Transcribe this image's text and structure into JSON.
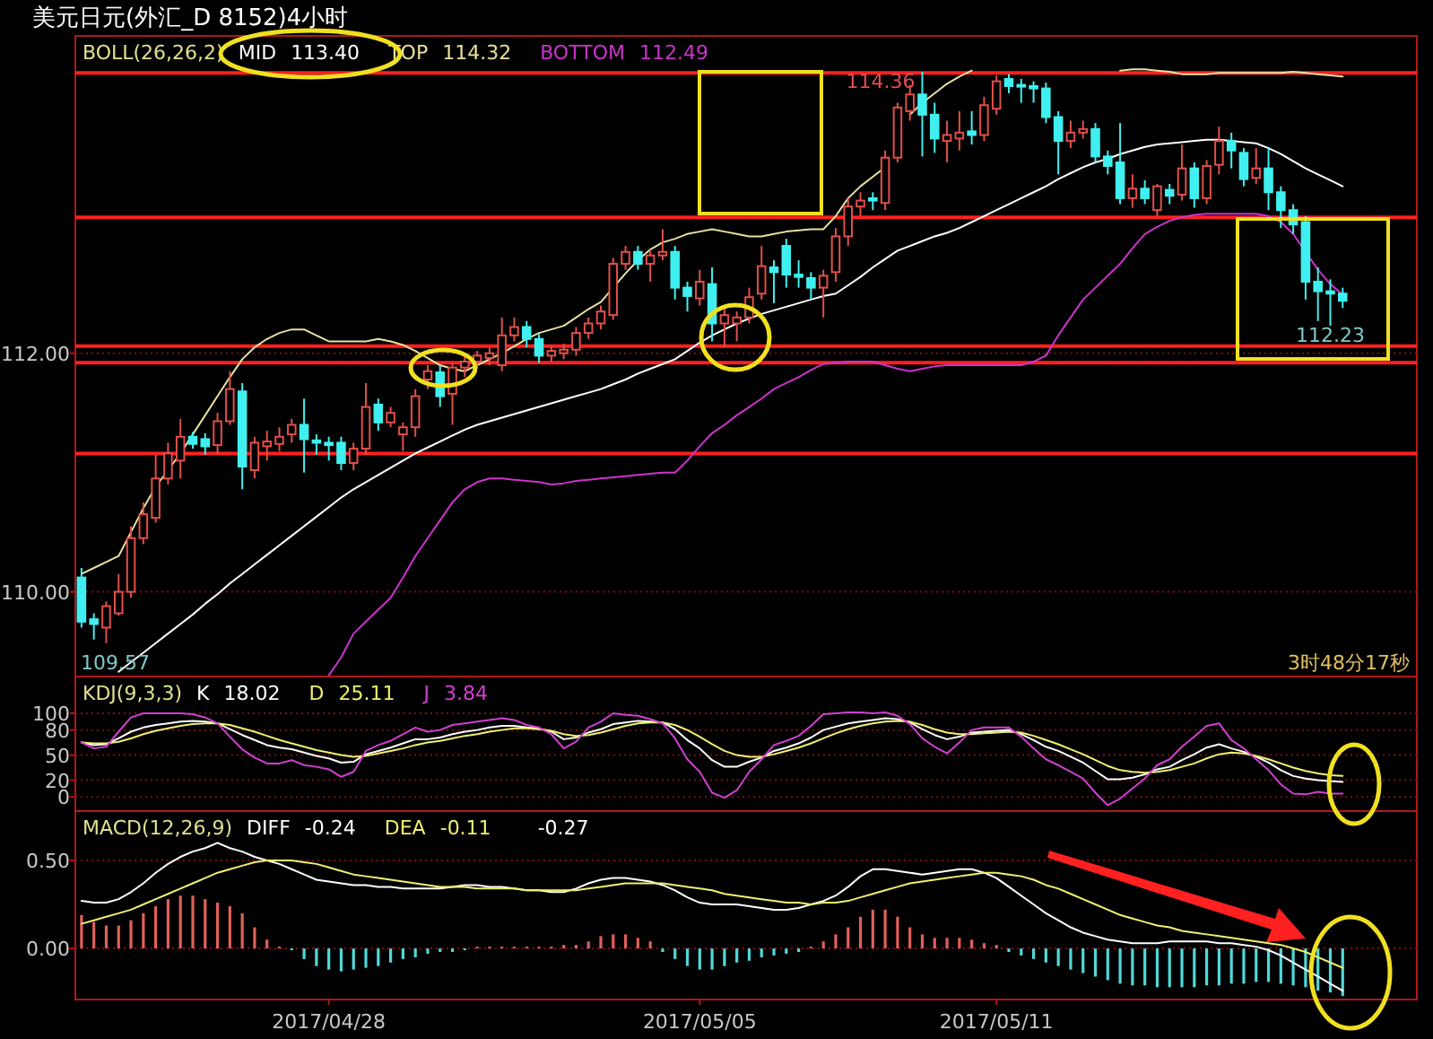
{
  "chart_data": [
    {
      "type": "candlestick",
      "title": "美元日元(外汇_D 8152)4小时",
      "legend_title": "BOLL(26,26,2)",
      "grid": "y",
      "tick_labels": "y",
      "ylim": [
        109.29,
        114.39
      ],
      "yticks": [
        {
          "value": 110,
          "label": "110.00"
        },
        {
          "value": 112,
          "label": "112.00"
        }
      ],
      "categories": [
        null,
        null,
        null,
        null,
        null,
        null,
        null,
        null,
        null,
        null,
        null,
        null,
        null,
        null,
        null,
        null,
        null,
        null,
        null,
        null,
        null,
        null,
        null,
        null,
        null,
        null,
        null,
        null,
        null,
        null,
        null,
        null,
        null,
        null,
        null,
        null,
        null,
        null,
        null,
        null,
        null,
        null,
        null,
        null,
        null,
        null,
        null,
        null,
        null,
        null,
        null,
        null,
        null,
        null,
        null,
        null,
        null,
        null,
        null,
        null,
        null,
        null,
        null,
        null,
        null,
        null,
        null,
        null,
        null,
        null,
        null,
        null,
        null,
        null,
        null,
        null,
        null,
        null,
        null,
        null,
        null,
        null,
        null,
        null,
        null,
        null,
        null,
        null,
        null,
        null,
        null,
        null,
        null,
        null,
        null,
        null,
        null,
        null,
        null,
        null,
        null,
        null,
        null
      ],
      "ohlc": [
        [
          110.12,
          110.2,
          109.7,
          109.75
        ],
        [
          109.77,
          109.82,
          109.6,
          109.73
        ],
        [
          109.7,
          109.92,
          109.57,
          109.88
        ],
        [
          109.82,
          110.15,
          109.8,
          110.0
        ],
        [
          110.0,
          110.55,
          109.95,
          110.45
        ],
        [
          110.45,
          110.75,
          110.4,
          110.65
        ],
        [
          110.62,
          111.15,
          110.58,
          110.95
        ],
        [
          110.95,
          111.25,
          110.9,
          111.16
        ],
        [
          111.1,
          111.45,
          110.95,
          111.3
        ],
        [
          111.3,
          111.34,
          111.2,
          111.24
        ],
        [
          111.28,
          111.33,
          111.15,
          111.22
        ],
        [
          111.23,
          111.5,
          111.15,
          111.43
        ],
        [
          111.43,
          111.85,
          111.4,
          111.7
        ],
        [
          111.68,
          111.75,
          110.86,
          111.05
        ],
        [
          111.02,
          111.3,
          110.95,
          111.25
        ],
        [
          111.22,
          111.35,
          111.1,
          111.26
        ],
        [
          111.24,
          111.38,
          111.18,
          111.3
        ],
        [
          111.32,
          111.45,
          111.25,
          111.4
        ],
        [
          111.4,
          111.62,
          111.0,
          111.28
        ],
        [
          111.27,
          111.32,
          111.15,
          111.25
        ],
        [
          111.25,
          111.3,
          111.1,
          111.23
        ],
        [
          111.25,
          111.3,
          111.02,
          111.08
        ],
        [
          111.08,
          111.25,
          111.02,
          111.2
        ],
        [
          111.2,
          111.75,
          111.15,
          111.55
        ],
        [
          111.57,
          111.62,
          111.35,
          111.42
        ],
        [
          111.42,
          111.55,
          111.38,
          111.5
        ],
        [
          111.32,
          111.42,
          111.18,
          111.38
        ],
        [
          111.38,
          111.7,
          111.3,
          111.64
        ],
        [
          111.78,
          111.9,
          111.7,
          111.85
        ],
        [
          111.84,
          111.9,
          111.55,
          111.64
        ],
        [
          111.66,
          111.92,
          111.4,
          111.88
        ],
        [
          111.88,
          111.98,
          111.8,
          111.93
        ],
        [
          111.93,
          112.02,
          111.88,
          111.98
        ],
        [
          111.96,
          112.05,
          111.9,
          112.0
        ],
        [
          111.9,
          112.3,
          111.85,
          112.15
        ],
        [
          112.15,
          112.3,
          112.1,
          112.22
        ],
        [
          112.22,
          112.27,
          112.05,
          112.12
        ],
        [
          112.12,
          112.16,
          111.92,
          111.98
        ],
        [
          111.98,
          112.06,
          111.93,
          112.02
        ],
        [
          112.0,
          112.08,
          111.95,
          112.03
        ],
        [
          112.03,
          112.22,
          111.98,
          112.17
        ],
        [
          112.17,
          112.3,
          112.12,
          112.25
        ],
        [
          112.25,
          112.4,
          112.2,
          112.35
        ],
        [
          112.32,
          112.8,
          112.28,
          112.75
        ],
        [
          112.75,
          112.9,
          112.7,
          112.85
        ],
        [
          112.85,
          112.9,
          112.7,
          112.75
        ],
        [
          112.75,
          112.87,
          112.6,
          112.82
        ],
        [
          112.82,
          113.04,
          112.78,
          112.85
        ],
        [
          112.85,
          112.9,
          112.45,
          112.55
        ],
        [
          112.55,
          112.6,
          112.35,
          112.48
        ],
        [
          112.46,
          112.7,
          112.4,
          112.6
        ],
        [
          112.58,
          112.72,
          112.1,
          112.25
        ],
        [
          112.25,
          112.4,
          112.05,
          112.32
        ],
        [
          112.25,
          112.35,
          112.1,
          112.3
        ],
        [
          112.3,
          112.55,
          112.25,
          112.47
        ],
        [
          112.5,
          112.9,
          112.45,
          112.73
        ],
        [
          112.72,
          112.78,
          112.42,
          112.68
        ],
        [
          112.9,
          112.96,
          112.55,
          112.66
        ],
        [
          112.66,
          112.78,
          112.55,
          112.64
        ],
        [
          112.63,
          112.68,
          112.45,
          112.55
        ],
        [
          112.55,
          112.7,
          112.3,
          112.65
        ],
        [
          112.68,
          113.05,
          112.6,
          112.98
        ],
        [
          112.98,
          113.3,
          112.9,
          113.23
        ],
        [
          113.23,
          113.35,
          113.15,
          113.28
        ],
        [
          113.3,
          113.35,
          113.2,
          113.28
        ],
        [
          113.26,
          113.7,
          113.2,
          113.64
        ],
        [
          113.64,
          114.1,
          113.6,
          114.06
        ],
        [
          114.03,
          114.25,
          113.95,
          114.17
        ],
        [
          114.17,
          114.36,
          113.65,
          114.0
        ],
        [
          114.0,
          114.1,
          113.68,
          113.8
        ],
        [
          113.78,
          113.95,
          113.6,
          113.83
        ],
        [
          113.8,
          114.03,
          113.7,
          113.85
        ],
        [
          113.86,
          114.03,
          113.75,
          113.83
        ],
        [
          113.83,
          114.15,
          113.78,
          114.08
        ],
        [
          114.05,
          114.33,
          114.0,
          114.28
        ],
        [
          114.3,
          114.34,
          114.18,
          114.24
        ],
        [
          114.25,
          114.3,
          114.1,
          114.24
        ],
        [
          114.24,
          114.28,
          114.1,
          114.22
        ],
        [
          114.22,
          114.27,
          113.93,
          113.98
        ],
        [
          113.98,
          114.03,
          113.5,
          113.78
        ],
        [
          113.78,
          113.95,
          113.72,
          113.85
        ],
        [
          113.85,
          113.95,
          113.8,
          113.88
        ],
        [
          113.88,
          113.93,
          113.6,
          113.65
        ],
        [
          113.65,
          113.7,
          113.5,
          113.57
        ],
        [
          113.6,
          113.93,
          113.25,
          113.3
        ],
        [
          113.3,
          113.5,
          113.22,
          113.38
        ],
        [
          113.38,
          113.45,
          113.25,
          113.3
        ],
        [
          113.2,
          113.42,
          113.15,
          113.4
        ],
        [
          113.37,
          113.42,
          113.25,
          113.32
        ],
        [
          113.33,
          113.75,
          113.28,
          113.55
        ],
        [
          113.55,
          113.6,
          113.22,
          113.3
        ],
        [
          113.3,
          113.62,
          113.25,
          113.57
        ],
        [
          113.58,
          113.9,
          113.5,
          113.78
        ],
        [
          113.78,
          113.85,
          113.55,
          113.7
        ],
        [
          113.68,
          113.72,
          113.4,
          113.46
        ],
        [
          113.47,
          113.72,
          113.42,
          113.55
        ],
        [
          113.55,
          113.72,
          113.2,
          113.35
        ],
        [
          113.35,
          113.4,
          113.05,
          113.2
        ],
        [
          113.2,
          113.25,
          113.0,
          113.08
        ],
        [
          113.1,
          113.15,
          112.45,
          112.6
        ],
        [
          112.6,
          112.72,
          112.27,
          112.52
        ],
        [
          112.52,
          112.62,
          112.23,
          112.5
        ],
        [
          112.5,
          112.55,
          112.38,
          112.44
        ]
      ],
      "series": [
        {
          "name": "MID",
          "type": "line",
          "color": "#ffffff",
          "values": [
            null,
            null,
            null,
            109.33,
            109.41,
            109.49,
            109.57,
            109.65,
            109.73,
            109.81,
            109.9,
            109.98,
            110.07,
            110.15,
            110.23,
            110.31,
            110.39,
            110.47,
            110.55,
            110.63,
            110.71,
            110.79,
            110.86,
            110.92,
            110.98,
            111.04,
            111.1,
            111.16,
            111.21,
            111.26,
            111.31,
            111.36,
            111.4,
            111.43,
            111.46,
            111.49,
            111.52,
            111.55,
            111.58,
            111.61,
            111.64,
            111.67,
            111.7,
            111.74,
            111.78,
            111.83,
            111.87,
            111.91,
            111.95,
            112.02,
            112.09,
            112.15,
            112.2,
            112.25,
            112.29,
            112.33,
            112.36,
            112.39,
            112.42,
            112.45,
            112.48,
            112.5,
            112.57,
            112.64,
            112.72,
            112.79,
            112.86,
            112.9,
            112.94,
            112.98,
            113.01,
            113.05,
            113.1,
            113.15,
            113.2,
            113.25,
            113.3,
            113.35,
            113.4,
            113.46,
            113.51,
            113.56,
            113.6,
            113.63,
            113.67,
            113.7,
            113.73,
            113.75,
            113.76,
            113.77,
            113.78,
            113.79,
            113.79,
            113.78,
            113.77,
            113.76,
            113.72,
            113.67,
            113.61,
            113.55,
            113.5,
            113.45,
            113.4
          ]
        },
        {
          "name": "TOP",
          "type": "line",
          "color": "#e8e0a0",
          "values": [
            110.15,
            110.2,
            110.25,
            110.3,
            110.5,
            110.7,
            110.88,
            111.02,
            111.16,
            111.32,
            111.48,
            111.64,
            111.8,
            111.95,
            112.05,
            112.12,
            112.17,
            112.2,
            112.2,
            112.15,
            112.1,
            112.1,
            112.1,
            112.1,
            112.12,
            112.1,
            112.07,
            112.02,
            111.96,
            111.9,
            111.87,
            111.85,
            111.9,
            111.95,
            112.0,
            112.06,
            112.12,
            112.17,
            112.2,
            112.23,
            112.3,
            112.37,
            112.43,
            112.55,
            112.67,
            112.78,
            112.87,
            112.93,
            112.96,
            113.0,
            113.02,
            113.04,
            113.02,
            113.0,
            112.98,
            112.98,
            113.0,
            113.02,
            113.03,
            113.04,
            113.04,
            113.15,
            113.3,
            113.4,
            113.48,
            113.56,
            null,
            114.0,
            114.1,
            114.18,
            114.26,
            114.32,
            114.37,
            null,
            null,
            null,
            null,
            null,
            null,
            null,
            null,
            null,
            null,
            null,
            114.37,
            114.38,
            114.38,
            114.37,
            114.36,
            114.34,
            114.34,
            114.34,
            114.35,
            114.35,
            114.35,
            114.35,
            114.35,
            114.35,
            114.36,
            114.35,
            114.34,
            114.33,
            114.32
          ]
        },
        {
          "name": "BOTTOM",
          "type": "line",
          "color": "#cc33cc",
          "values": [
            null,
            null,
            null,
            null,
            null,
            null,
            null,
            null,
            null,
            null,
            null,
            null,
            null,
            null,
            null,
            null,
            null,
            null,
            null,
            null,
            109.3,
            109.45,
            109.65,
            109.75,
            109.85,
            109.95,
            110.12,
            110.3,
            110.45,
            110.6,
            110.75,
            110.86,
            110.92,
            110.95,
            110.95,
            110.94,
            110.93,
            110.92,
            110.9,
            110.91,
            110.93,
            110.94,
            110.95,
            110.96,
            110.97,
            110.98,
            110.99,
            111.0,
            111.0,
            111.1,
            111.22,
            111.33,
            111.4,
            111.48,
            111.55,
            111.62,
            111.7,
            111.75,
            111.8,
            111.86,
            111.91,
            111.92,
            111.93,
            111.93,
            111.93,
            111.9,
            111.87,
            111.85,
            111.87,
            111.89,
            111.9,
            111.9,
            111.9,
            111.9,
            111.9,
            111.9,
            111.9,
            111.93,
            111.98,
            112.15,
            112.3,
            112.45,
            112.55,
            112.65,
            112.75,
            112.88,
            113.0,
            113.06,
            113.11,
            113.14,
            113.16,
            113.17,
            113.17,
            113.17,
            113.17,
            113.17,
            113.15,
            113.1,
            113.0,
            112.85,
            112.7,
            112.58,
            112.49
          ]
        }
      ],
      "ref_lines": [
        {
          "axis": "y",
          "value": 114.35,
          "color": "#ff2020"
        },
        {
          "axis": "y",
          "value": 113.14,
          "color": "#ff2020"
        },
        {
          "axis": "y",
          "value": 112.06,
          "color": "#ff2020"
        },
        {
          "axis": "y",
          "value": 111.92,
          "color": "#ff2020"
        },
        {
          "axis": "y",
          "value": 111.16,
          "color": "#ff2020"
        }
      ],
      "annotations": [
        "113.40",
        "114.32",
        "112.49",
        {
          "text": "114.36",
          "y": 114.36
        },
        {
          "text": "112.23",
          "y": 112.23
        },
        "109.57",
        "3时48分17秒"
      ]
    },
    {
      "type": "line",
      "legend_title": "KDJ(9,3,3)",
      "grid": "y",
      "tick_labels": "y",
      "ylim": [
        -17,
        144
      ],
      "yticks": [
        0,
        20,
        50,
        80,
        100
      ],
      "categories": [
        null,
        null,
        null,
        null,
        null,
        null,
        null,
        null,
        null,
        null,
        null,
        null,
        null,
        null,
        null,
        null,
        null,
        null,
        null,
        null,
        null,
        null,
        null,
        null,
        null,
        null,
        null,
        null,
        null,
        null,
        null,
        null,
        null,
        null,
        null,
        null,
        null,
        null,
        null,
        null,
        null,
        null,
        null,
        null,
        null,
        null,
        null,
        null,
        null,
        null,
        null,
        null,
        null,
        null,
        null,
        null,
        null,
        null,
        null,
        null,
        null,
        null,
        null,
        null,
        null,
        null,
        null,
        null,
        null,
        null,
        null,
        null,
        null,
        null,
        null,
        null,
        null,
        null,
        null,
        null,
        null,
        null,
        null,
        null,
        null,
        null,
        null,
        null,
        null,
        null,
        null,
        null,
        null,
        null,
        null,
        null,
        null,
        null,
        null,
        null,
        null,
        null,
        null
      ],
      "series": [
        {
          "name": "K",
          "color": "#ffffff",
          "values": [
            65,
            62,
            63,
            70,
            78,
            83,
            86,
            88,
            90,
            91,
            90,
            88,
            81,
            74,
            68,
            62,
            59,
            57,
            53,
            49,
            46,
            41,
            42,
            51,
            55,
            59,
            64,
            69,
            69,
            71,
            75,
            78,
            80,
            83,
            85,
            85,
            83,
            82,
            78,
            69,
            71,
            77,
            81,
            87,
            89,
            91,
            90,
            89,
            81,
            68,
            58,
            44,
            36,
            36,
            42,
            47,
            55,
            59,
            64,
            71,
            80,
            84,
            88,
            90,
            92,
            94,
            93,
            89,
            81,
            74,
            69,
            72,
            77,
            78,
            79,
            80,
            75,
            68,
            60,
            55,
            48,
            41,
            31,
            21,
            21,
            23,
            27,
            33,
            36,
            44,
            51,
            59,
            63,
            58,
            54,
            48,
            41,
            32,
            25,
            22,
            20,
            19,
            18.02
          ]
        },
        {
          "name": "D",
          "color": "#f0f070",
          "values": [
            65,
            64,
            64,
            66,
            70,
            75,
            79,
            82,
            85,
            87,
            88,
            88,
            86,
            82,
            78,
            73,
            68,
            64,
            60,
            56,
            53,
            50,
            48,
            49,
            52,
            55,
            58,
            62,
            65,
            67,
            70,
            73,
            75,
            78,
            80,
            82,
            82,
            81,
            79,
            75,
            73,
            74,
            77,
            81,
            85,
            88,
            89,
            89,
            86,
            80,
            72,
            63,
            55,
            50,
            48,
            48,
            51,
            55,
            59,
            64,
            70,
            76,
            81,
            85,
            88,
            90,
            91,
            90,
            86,
            81,
            77,
            75,
            75,
            76,
            77,
            78,
            77,
            73,
            68,
            63,
            57,
            51,
            44,
            37,
            32,
            30,
            29,
            30,
            32,
            36,
            40,
            46,
            51,
            53,
            52,
            49,
            45,
            40,
            35,
            31,
            28,
            26,
            25.11
          ]
        },
        {
          "name": "J",
          "color": "#d040d0",
          "values": [
            65,
            58,
            60,
            78,
            95,
            100,
            100,
            100,
            100,
            99,
            95,
            88,
            72,
            57,
            47,
            40,
            40,
            44,
            38,
            36,
            33,
            24,
            30,
            55,
            62,
            67,
            75,
            83,
            78,
            80,
            86,
            88,
            90,
            92,
            94,
            92,
            86,
            83,
            75,
            58,
            66,
            83,
            90,
            100,
            98,
            97,
            93,
            88,
            70,
            45,
            30,
            5,
            -1,
            8,
            30,
            45,
            62,
            67,
            73,
            85,
            99,
            100,
            101,
            101,
            100,
            101,
            97,
            87,
            70,
            60,
            52,
            65,
            80,
            83,
            83,
            83,
            72,
            58,
            45,
            38,
            30,
            22,
            5,
            -10,
            -2,
            10,
            22,
            38,
            45,
            60,
            72,
            85,
            88,
            68,
            58,
            45,
            32,
            15,
            4,
            3,
            6,
            4,
            3.84
          ]
        }
      ],
      "annotations": [
        "18.02",
        "25.11",
        "3.84"
      ]
    },
    {
      "type": "line",
      "legend_title": "MACD(12,26,9)",
      "grid": "y",
      "ylim": [
        -0.29,
        0.78
      ],
      "yticks": [
        {
          "value": 0,
          "label": "0.00"
        },
        {
          "value": 0.5,
          "label": "0.50"
        }
      ],
      "categories": [
        null,
        null,
        null,
        null,
        null,
        null,
        null,
        null,
        null,
        null,
        null,
        null,
        null,
        null,
        null,
        null,
        null,
        null,
        null,
        null,
        "2017/04/28",
        null,
        null,
        null,
        null,
        null,
        null,
        null,
        null,
        null,
        null,
        null,
        null,
        null,
        null,
        null,
        null,
        null,
        null,
        null,
        null,
        null,
        null,
        null,
        null,
        null,
        null,
        null,
        null,
        null,
        "2017/05/05",
        null,
        null,
        null,
        null,
        null,
        null,
        null,
        null,
        null,
        null,
        null,
        null,
        null,
        null,
        null,
        null,
        null,
        null,
        null,
        null,
        null,
        null,
        null,
        "2017/05/11",
        null,
        null,
        null,
        null,
        null,
        null,
        null,
        null,
        null,
        null,
        null,
        null,
        null,
        null,
        null,
        null,
        null,
        null,
        null,
        null,
        null,
        null,
        null,
        null,
        null,
        null,
        null,
        null
      ],
      "series": [
        {
          "type": "bar",
          "color": "#e0605a",
          "values": [
            0.19,
            0.15,
            0.13,
            0.13,
            0.16,
            0.2,
            0.24,
            0.28,
            0.3,
            0.3,
            0.28,
            0.26,
            0.24,
            0.2,
            0.12,
            0.05,
            0.01,
            null,
            null,
            null,
            null,
            null,
            null,
            null,
            null,
            null,
            null,
            null,
            null,
            null,
            null,
            null,
            0.01,
            0.01,
            0.01,
            0.01,
            0.01,
            0.01,
            0.01,
            0.02,
            0.02,
            0.04,
            0.07,
            0.08,
            0.08,
            0.06,
            0.04,
            null,
            null,
            null,
            null,
            null,
            null,
            null,
            null,
            null,
            null,
            null,
            null,
            0.01,
            0.04,
            0.08,
            0.12,
            0.18,
            0.22,
            0.22,
            0.18,
            0.12,
            0.08,
            0.06,
            0.06,
            0.06,
            0.05,
            0.03,
            0.02,
            null,
            null,
            null,
            null,
            null,
            null,
            null,
            null,
            null,
            null,
            null,
            null,
            null,
            null,
            null,
            null,
            null,
            null,
            null,
            null,
            null,
            null,
            null,
            null,
            null,
            null,
            null,
            null
          ]
        },
        {
          "type": "bar",
          "color": "#50d8d8",
          "values": [
            null,
            null,
            null,
            null,
            null,
            null,
            null,
            null,
            null,
            null,
            null,
            null,
            null,
            null,
            null,
            null,
            null,
            -0.01,
            -0.06,
            -0.1,
            -0.12,
            -0.13,
            -0.12,
            -0.11,
            -0.1,
            -0.08,
            -0.06,
            -0.05,
            -0.03,
            -0.02,
            -0.02,
            -0.01,
            null,
            null,
            null,
            null,
            null,
            null,
            null,
            null,
            null,
            null,
            null,
            null,
            null,
            null,
            null,
            -0.02,
            -0.06,
            -0.1,
            -0.12,
            -0.12,
            -0.1,
            -0.08,
            -0.07,
            -0.05,
            -0.04,
            -0.03,
            -0.02,
            null,
            null,
            null,
            null,
            null,
            null,
            null,
            null,
            null,
            null,
            null,
            null,
            null,
            null,
            null,
            null,
            -0.02,
            -0.04,
            -0.06,
            -0.08,
            -0.1,
            -0.12,
            -0.14,
            -0.16,
            -0.18,
            -0.2,
            -0.21,
            -0.21,
            -0.22,
            -0.22,
            -0.22,
            -0.22,
            -0.21,
            -0.21,
            -0.2,
            -0.2,
            -0.19,
            -0.19,
            -0.2,
            -0.21,
            -0.22,
            -0.24,
            -0.25,
            -0.27
          ]
        },
        {
          "name": "DIFF",
          "type": "line",
          "color": "#ffffff",
          "values": [
            0.27,
            0.26,
            0.26,
            0.28,
            0.32,
            0.37,
            0.43,
            0.48,
            0.52,
            0.55,
            0.57,
            0.6,
            0.57,
            0.55,
            0.52,
            0.5,
            0.48,
            0.45,
            0.42,
            0.39,
            0.38,
            0.37,
            0.36,
            0.36,
            0.35,
            0.35,
            0.34,
            0.34,
            0.34,
            0.34,
            0.35,
            0.36,
            0.36,
            0.35,
            0.35,
            0.34,
            0.33,
            0.33,
            0.32,
            0.32,
            0.34,
            0.37,
            0.39,
            0.4,
            0.4,
            0.39,
            0.38,
            0.36,
            0.33,
            0.29,
            0.26,
            0.25,
            0.25,
            0.25,
            0.24,
            0.23,
            0.22,
            0.22,
            0.23,
            0.25,
            0.27,
            0.3,
            0.35,
            0.41,
            0.45,
            0.45,
            0.44,
            0.43,
            0.42,
            0.43,
            0.44,
            0.45,
            0.45,
            0.43,
            0.4,
            0.35,
            0.3,
            0.25,
            0.2,
            0.16,
            0.12,
            0.09,
            0.07,
            0.05,
            0.04,
            0.03,
            0.03,
            0.03,
            0.04,
            0.04,
            0.04,
            0.04,
            0.03,
            0.03,
            0.02,
            0.01,
            -0.01,
            -0.04,
            -0.08,
            -0.12,
            -0.16,
            -0.2,
            -0.24
          ]
        },
        {
          "name": "DEA",
          "type": "line",
          "color": "#f0f070",
          "values": [
            0.14,
            0.16,
            0.18,
            0.2,
            0.22,
            0.25,
            0.28,
            0.31,
            0.34,
            0.37,
            0.4,
            0.43,
            0.45,
            0.47,
            0.49,
            0.5,
            0.5,
            0.5,
            0.49,
            0.48,
            0.46,
            0.44,
            0.42,
            0.41,
            0.4,
            0.39,
            0.38,
            0.37,
            0.36,
            0.35,
            0.35,
            0.35,
            0.34,
            0.34,
            0.34,
            0.34,
            0.33,
            0.33,
            0.33,
            0.33,
            0.33,
            0.34,
            0.35,
            0.36,
            0.37,
            0.37,
            0.37,
            0.37,
            0.36,
            0.35,
            0.34,
            0.33,
            0.31,
            0.3,
            0.29,
            0.28,
            0.27,
            0.26,
            0.26,
            0.25,
            0.26,
            0.26,
            0.27,
            0.29,
            0.31,
            0.33,
            0.35,
            0.37,
            0.38,
            0.39,
            0.4,
            0.41,
            0.42,
            0.43,
            0.43,
            0.42,
            0.41,
            0.39,
            0.36,
            0.34,
            0.31,
            0.28,
            0.25,
            0.22,
            0.19,
            0.17,
            0.15,
            0.13,
            0.12,
            0.1,
            0.09,
            0.08,
            0.07,
            0.06,
            0.05,
            0.04,
            0.03,
            0.02,
            0,
            -0.02,
            -0.05,
            -0.08,
            -0.11
          ]
        }
      ],
      "annotations": [
        "-0.24",
        "-0.11",
        "-0.27"
      ]
    }
  ]
}
